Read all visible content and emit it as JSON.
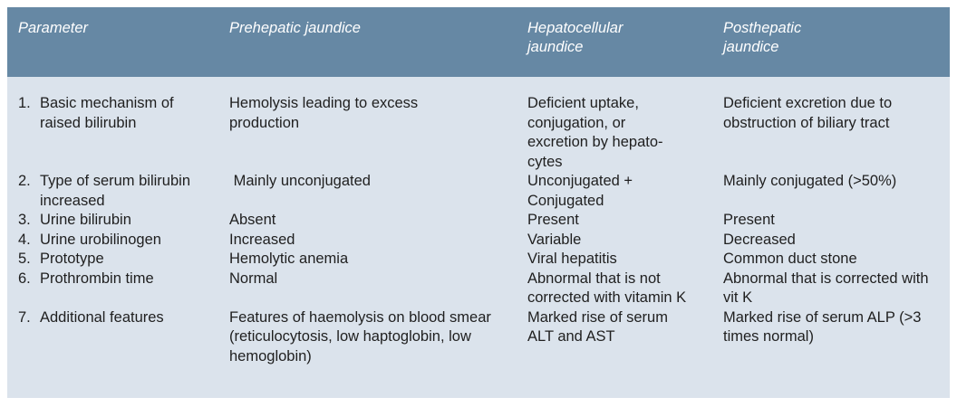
{
  "headers": {
    "parameter": "Parameter",
    "prehepatic": "Prehepatic jaundice",
    "hepatocellular": "Hepatocellular jaundice",
    "posthepatic": "Posthepatic jaundice"
  },
  "rows": [
    {
      "num": "1.",
      "parameter": "Basic mechanism of raised bilirubin",
      "prehepatic": "Hemolysis leading to excess production",
      "hepatocellular": "Deficient uptake, conjugation, or excretion by hepato-cytes",
      "posthepatic": "Deficient excretion due to obstruction of biliary tract"
    },
    {
      "num": "2.",
      "parameter": "Type of serum bilirubin increased",
      "prehepatic": " Mainly unconjugated",
      "hepatocellular": "Unconjugated + Conjugated",
      "posthepatic": "Mainly conjugated (>50%)"
    },
    {
      "num": "3.",
      "parameter": "Urine bilirubin",
      "prehepatic": "Absent",
      "hepatocellular": "Present",
      "posthepatic": "Present"
    },
    {
      "num": "4.",
      "parameter": "Urine urobilinogen",
      "prehepatic": "Increased",
      "hepatocellular": "Variable",
      "posthepatic": "Decreased"
    },
    {
      "num": "5.",
      "parameter": "Prototype",
      "prehepatic": "Hemolytic anemia",
      "hepatocellular": "Viral hepatitis",
      "posthepatic": "Common duct stone"
    },
    {
      "num": "6.",
      "parameter": "Prothrombin time",
      "prehepatic": "Normal",
      "hepatocellular": "Abnormal that is not corrected with vitamin K",
      "posthepatic": "Abnormal that is corrected with vit K"
    },
    {
      "num": "7.",
      "parameter": "Additional features",
      "prehepatic": "Features of haemolysis on blood smear (reticulocytosis, low haptoglobin, low hemoglobin)",
      "hepatocellular": "Marked rise of serum ALT and AST",
      "posthepatic": "Marked rise of serum ALP (>3 times normal)"
    }
  ],
  "colors": {
    "header_bg": "#6688a4",
    "body_bg": "#dbe3ec",
    "header_text": "#ffffff",
    "body_text": "#1f1f1f"
  }
}
